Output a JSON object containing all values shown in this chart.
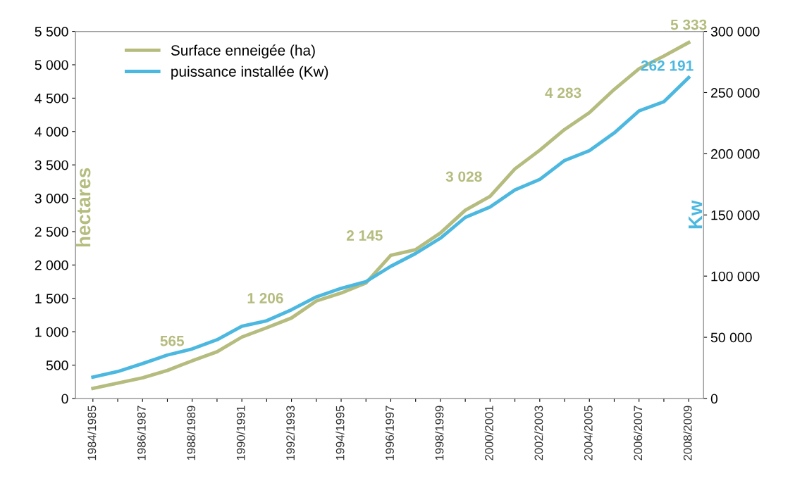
{
  "chart_data": {
    "type": "line",
    "categories": [
      "1984/1985",
      null,
      "1986/1987",
      null,
      "1988/1989",
      null,
      "1990/1991",
      null,
      "1992/1993",
      null,
      "1994/1995",
      null,
      "1996/1997",
      null,
      "1998/1999",
      null,
      "2000/2001",
      null,
      "2002/2003",
      null,
      "2004/2005",
      null,
      "2006/2007",
      null,
      "2008/2009"
    ],
    "series": [
      {
        "name": "Surface enneigée (ha)",
        "color": "#b5bc7e",
        "values": [
          150,
          230,
          310,
          420,
          565,
          700,
          920,
          1060,
          1206,
          1460,
          1580,
          1730,
          2145,
          2230,
          2480,
          2820,
          3028,
          3440,
          3720,
          4030,
          4283,
          4630,
          4940,
          5130,
          5333
        ],
        "value_labels": [
          null,
          null,
          null,
          null,
          "565",
          null,
          null,
          null,
          "1 206",
          null,
          null,
          null,
          "2 145",
          null,
          null,
          null,
          "3 028",
          null,
          null,
          null,
          "4 283",
          null,
          null,
          null,
          "5 333"
        ]
      },
      {
        "name": "puissance installée (Kw)",
        "color": "#4cb8e0",
        "axis": "y2",
        "values": [
          17500,
          22000,
          28500,
          35500,
          40500,
          48000,
          59000,
          63500,
          72500,
          83000,
          90000,
          95500,
          108000,
          118500,
          131000,
          148000,
          156500,
          170500,
          179000,
          194500,
          202500,
          217000,
          235000,
          242500,
          262191
        ],
        "value_labels": [
          null,
          null,
          null,
          null,
          null,
          null,
          null,
          null,
          null,
          null,
          null,
          null,
          null,
          null,
          null,
          null,
          null,
          null,
          null,
          null,
          null,
          null,
          null,
          null,
          "262 191"
        ]
      }
    ],
    "ylabel": "hectares",
    "y2label": "Kw",
    "ylim": [
      0,
      5500
    ],
    "yticks": [
      0,
      500,
      {
        "value": 1000,
        "label": "1 000"
      },
      {
        "value": 1500,
        "label": "1 500"
      },
      {
        "value": 2000,
        "label": "2 000"
      },
      {
        "value": 2500,
        "label": "2 500"
      },
      {
        "value": 3000,
        "label": "3 000"
      },
      {
        "value": 3500,
        "label": "3 500"
      },
      {
        "value": 4000,
        "label": "4 000"
      },
      {
        "value": 4500,
        "label": "4 500"
      },
      {
        "value": 5000,
        "label": "5 000"
      },
      {
        "value": 5500,
        "label": "5 500"
      }
    ],
    "y2lim": [
      0,
      300000
    ],
    "y2ticks": [
      0,
      {
        "value": 50000,
        "label": "50 000"
      },
      {
        "value": 100000,
        "label": "100 000"
      },
      {
        "value": 150000,
        "label": "150 000"
      },
      {
        "value": 200000,
        "label": "200 000"
      },
      {
        "value": 250000,
        "label": "250 000"
      },
      {
        "value": 300000,
        "label": "300 000"
      }
    ],
    "line_style": "solid",
    "grid": false,
    "legend": "top left"
  }
}
